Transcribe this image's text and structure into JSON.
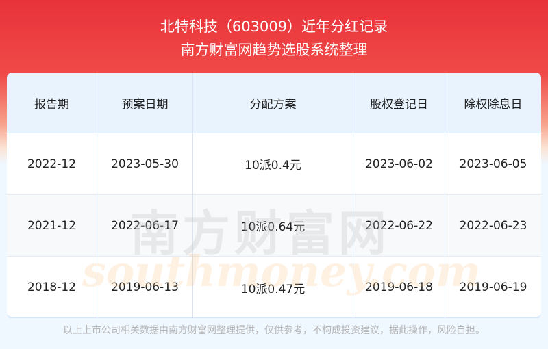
{
  "header": {
    "title": "北特科技（603009）近年分红记录",
    "subtitle": "南方财富网趋势选股系统整理"
  },
  "table": {
    "columns": [
      "报告期",
      "预案日期",
      "分配方案",
      "股权登记日",
      "除权除息日"
    ],
    "rows": [
      [
        "2022-12",
        "2023-05-30",
        "10派0.4元",
        "2023-06-02",
        "2023-06-05"
      ],
      [
        "2021-12",
        "2022-06-17",
        "10派0.64元",
        "2022-06-22",
        "2022-06-23"
      ],
      [
        "2018-12",
        "2019-06-13",
        "10派0.47元",
        "2019-06-18",
        "2019-06-19"
      ]
    ]
  },
  "watermark": {
    "cn": "南方财富网",
    "en": "southmoney.com"
  },
  "footer": "以上上市公司相关数据由南方财富网整理提供，仅供参考，不构成投资建议，据此操作，风险自担。"
}
